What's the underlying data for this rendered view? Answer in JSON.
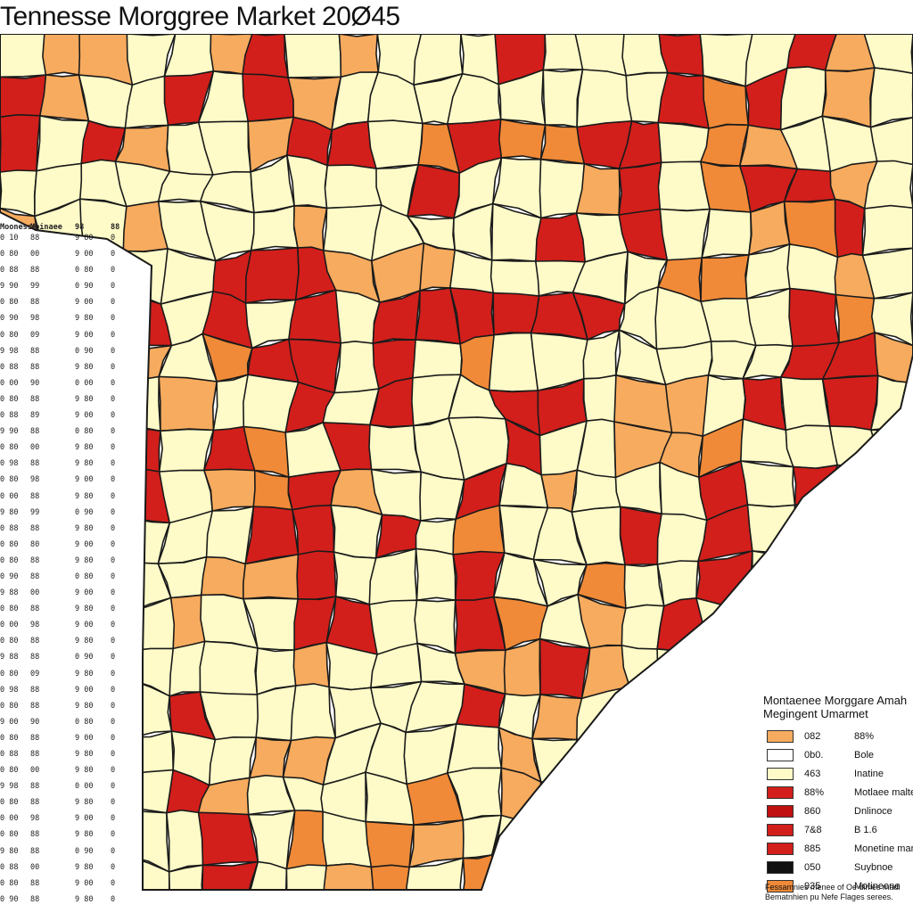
{
  "title": "Tennesse Morggree Market 20Ø45",
  "colors": {
    "pale": "#fefbc8",
    "light_orange": "#f7ab5e",
    "orange": "#f08a38",
    "red": "#d21f1b",
    "dark_red": "#c01010",
    "black": "#111111",
    "border": "#1a1a1a"
  },
  "side_table": {
    "header": [
      "Moonesse",
      "Moinaee",
      "98",
      "88"
    ],
    "rows": [
      [
        "0 10",
        "88",
        "9 80",
        "0"
      ],
      [
        "0 80",
        "00",
        "9 00",
        "0"
      ],
      [
        "0 88",
        "88",
        "0 80",
        "0"
      ],
      [
        "9 90",
        "99",
        "0 90",
        "0"
      ],
      [
        "0 80",
        "88",
        "9 00",
        "0"
      ],
      [
        "0 90",
        "98",
        "9 80",
        "0"
      ],
      [
        "0 80",
        "09",
        "9 00",
        "0"
      ],
      [
        "9 98",
        "88",
        "0 90",
        "0"
      ],
      [
        "0 88",
        "88",
        "9 80",
        "0"
      ],
      [
        "0 00",
        "90",
        "0 00",
        "0"
      ],
      [
        "0 80",
        "88",
        "9 80",
        "0"
      ],
      [
        "0 88",
        "89",
        "9 00",
        "0"
      ],
      [
        "9 90",
        "88",
        "0 80",
        "0"
      ],
      [
        "0 80",
        "00",
        "9 80",
        "0"
      ],
      [
        "0 98",
        "88",
        "9 80",
        "0"
      ],
      [
        "0 80",
        "98",
        "9 00",
        "0"
      ],
      [
        "0 00",
        "88",
        "9 80",
        "0"
      ],
      [
        "9 80",
        "99",
        "0 90",
        "0"
      ],
      [
        "0 88",
        "88",
        "9 80",
        "0"
      ],
      [
        "0 80",
        "80",
        "9 00",
        "0"
      ],
      [
        "0 80",
        "88",
        "9 80",
        "0"
      ],
      [
        "0 90",
        "88",
        "0 80",
        "0"
      ],
      [
        "9 88",
        "00",
        "9 00",
        "0"
      ],
      [
        "0 80",
        "88",
        "9 80",
        "0"
      ],
      [
        "0 00",
        "98",
        "9 00",
        "0"
      ],
      [
        "0 80",
        "88",
        "9 80",
        "0"
      ],
      [
        "9 88",
        "88",
        "0 90",
        "0"
      ],
      [
        "0 80",
        "09",
        "9 80",
        "0"
      ],
      [
        "0 98",
        "88",
        "9 00",
        "0"
      ],
      [
        "0 80",
        "88",
        "9 80",
        "0"
      ],
      [
        "9 00",
        "90",
        "0 80",
        "0"
      ],
      [
        "0 80",
        "88",
        "9 00",
        "0"
      ],
      [
        "0 88",
        "88",
        "9 80",
        "0"
      ],
      [
        "0 80",
        "00",
        "9 80",
        "0"
      ],
      [
        "9 98",
        "88",
        "0 00",
        "0"
      ],
      [
        "0 80",
        "88",
        "9 80",
        "0"
      ],
      [
        "0 00",
        "98",
        "9 00",
        "0"
      ],
      [
        "0 80",
        "88",
        "9 80",
        "0"
      ],
      [
        "9 80",
        "88",
        "0 90",
        "0"
      ],
      [
        "0 88",
        "00",
        "9 80",
        "0"
      ],
      [
        "0 80",
        "88",
        "9 00",
        "0"
      ],
      [
        "0 90",
        "88",
        "9 80",
        "0"
      ]
    ]
  },
  "legend": {
    "title_line1": "Montaenee Morggare Amah",
    "title_line2": "Megingent Umarmet",
    "items": [
      {
        "swatch": "#f7ab5e",
        "value": "082",
        "label": "88%"
      },
      {
        "swatch": "#ffffff",
        "value": "0b0.",
        "label": "Bole"
      },
      {
        "swatch": "#fefbc8",
        "value": "463",
        "label": "Inatine"
      },
      {
        "swatch": "#d21f1b",
        "value": "88%",
        "label": "Motlaee malte"
      },
      {
        "swatch": "#c01010",
        "value": "860",
        "label": "Dnlinoce"
      },
      {
        "swatch": "#d21f1b",
        "value": "7&8",
        "label": "B 1.6"
      },
      {
        "swatch": "#d21f1b",
        "value": "885",
        "label": "Monetine marke"
      },
      {
        "swatch": "#111111",
        "value": "050",
        "label": "Suybnoe"
      },
      {
        "swatch": "#f08a38",
        "value": "935",
        "label": "Motineone"
      }
    ]
  },
  "footnote": {
    "line1": "Fessamnies menee of Oe dimes madi",
    "line2": "Bematnhien pu Nefe Flages serees."
  }
}
